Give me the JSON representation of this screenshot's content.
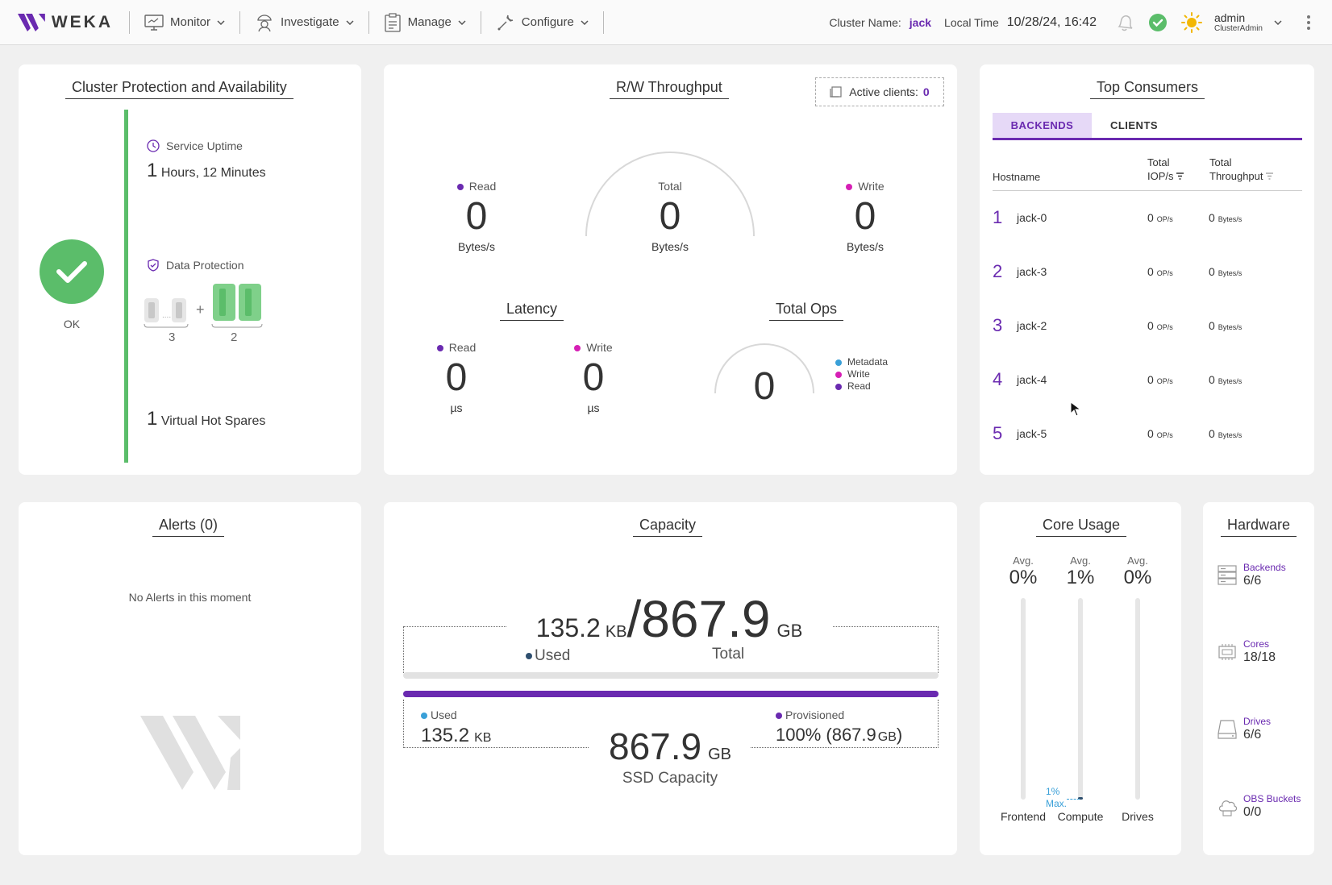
{
  "app": {
    "brand": "WEKA",
    "accent": "#6a2ab0",
    "ok_color": "#5bbd6a"
  },
  "nav": [
    {
      "label": "Monitor",
      "icon": "monitor-icon"
    },
    {
      "label": "Investigate",
      "icon": "investigate-icon"
    },
    {
      "label": "Manage",
      "icon": "manage-icon"
    },
    {
      "label": "Configure",
      "icon": "configure-icon"
    }
  ],
  "header": {
    "cluster_label": "Cluster Name:",
    "cluster_name": "jack",
    "time_label": "Local Time",
    "time_value": "10/28/24, 16:42",
    "user_name": "admin",
    "user_role": "ClusterAdmin"
  },
  "protection": {
    "title": "Cluster Protection and Availability",
    "status": "OK",
    "uptime_label": "Service Uptime",
    "uptime_num": "1",
    "uptime_text": "Hours, 12 Minutes",
    "data_protection_label": "Data Protection",
    "data_drives": "3",
    "parity_drives": "2",
    "plus": "+",
    "hot_spares_num": "1",
    "hot_spares_text": "Virtual Hot Spares"
  },
  "throughput": {
    "title": "R/W Throughput",
    "active_clients_label": "Active clients:",
    "active_clients": "0",
    "read_label": "Read",
    "read_value": "0",
    "read_unit": "Bytes/s",
    "total_label": "Total",
    "total_value": "0",
    "total_unit": "Bytes/s",
    "write_label": "Write",
    "write_value": "0",
    "write_unit": "Bytes/s",
    "latency_title": "Latency",
    "lat_read_label": "Read",
    "lat_read_value": "0",
    "lat_read_unit": "µs",
    "lat_write_label": "Write",
    "lat_write_value": "0",
    "lat_write_unit": "µs",
    "ops_title": "Total Ops",
    "ops_value": "0",
    "ops_legend": [
      "Metadata",
      "Write",
      "Read"
    ],
    "read_color": "#6a2ab0",
    "write_color": "#d61fb5",
    "metadata_color": "#3aa0d8"
  },
  "consumers": {
    "title": "Top Consumers",
    "tab_backends": "BACKENDS",
    "tab_clients": "CLIENTS",
    "col_host": "Hostname",
    "col_iops_1": "Total",
    "col_iops_2": "IOP/s",
    "col_tput_1": "Total",
    "col_tput_2": "Throughput",
    "rows": [
      {
        "rank": "1",
        "host": "jack-0",
        "iops": "0",
        "iops_unit": "OP/s",
        "tput": "0",
        "tput_unit": "Bytes/s"
      },
      {
        "rank": "2",
        "host": "jack-3",
        "iops": "0",
        "iops_unit": "OP/s",
        "tput": "0",
        "tput_unit": "Bytes/s"
      },
      {
        "rank": "3",
        "host": "jack-2",
        "iops": "0",
        "iops_unit": "OP/s",
        "tput": "0",
        "tput_unit": "Bytes/s"
      },
      {
        "rank": "4",
        "host": "jack-4",
        "iops": "0",
        "iops_unit": "OP/s",
        "tput": "0",
        "tput_unit": "Bytes/s"
      },
      {
        "rank": "5",
        "host": "jack-5",
        "iops": "0",
        "iops_unit": "OP/s",
        "tput": "0",
        "tput_unit": "Bytes/s"
      }
    ]
  },
  "alerts": {
    "title": "Alerts (0)",
    "empty_message": "No Alerts in this moment"
  },
  "capacity": {
    "title": "Capacity",
    "used_num": "135.2",
    "used_unit": "KB",
    "slash": "/",
    "total_num": "867.9",
    "total_unit": "GB",
    "used_label": "Used",
    "total_label": "Total",
    "ssd_used_label": "Used",
    "ssd_used_num": "135.2",
    "ssd_used_unit": "KB",
    "ssd_num": "867.9",
    "ssd_unit": "GB",
    "ssd_label": "SSD Capacity",
    "provisioned_label": "Provisioned",
    "provisioned_pct": "100% (867.9",
    "provisioned_unit": "GB",
    "provisioned_close": ")",
    "provisioned_fraction": 1.0
  },
  "cores": {
    "title": "Core Usage",
    "avg_label": "Avg.",
    "columns": [
      {
        "name": "Frontend",
        "avg": "0%",
        "level": 0
      },
      {
        "name": "Compute",
        "avg": "1%",
        "level": 0.01
      },
      {
        "name": "Drives",
        "avg": "0%",
        "level": 0
      }
    ],
    "max_pct": "1%",
    "max_label": "Max."
  },
  "hardware": {
    "title": "Hardware",
    "items": [
      {
        "label": "Backends",
        "value": "6/6",
        "icon": "server-icon"
      },
      {
        "label": "Cores",
        "value": "18/18",
        "icon": "cpu-icon"
      },
      {
        "label": "Drives",
        "value": "6/6",
        "icon": "drive-icon"
      },
      {
        "label": "OBS Buckets",
        "value": "0/0",
        "icon": "cloud-storage-icon"
      }
    ]
  }
}
